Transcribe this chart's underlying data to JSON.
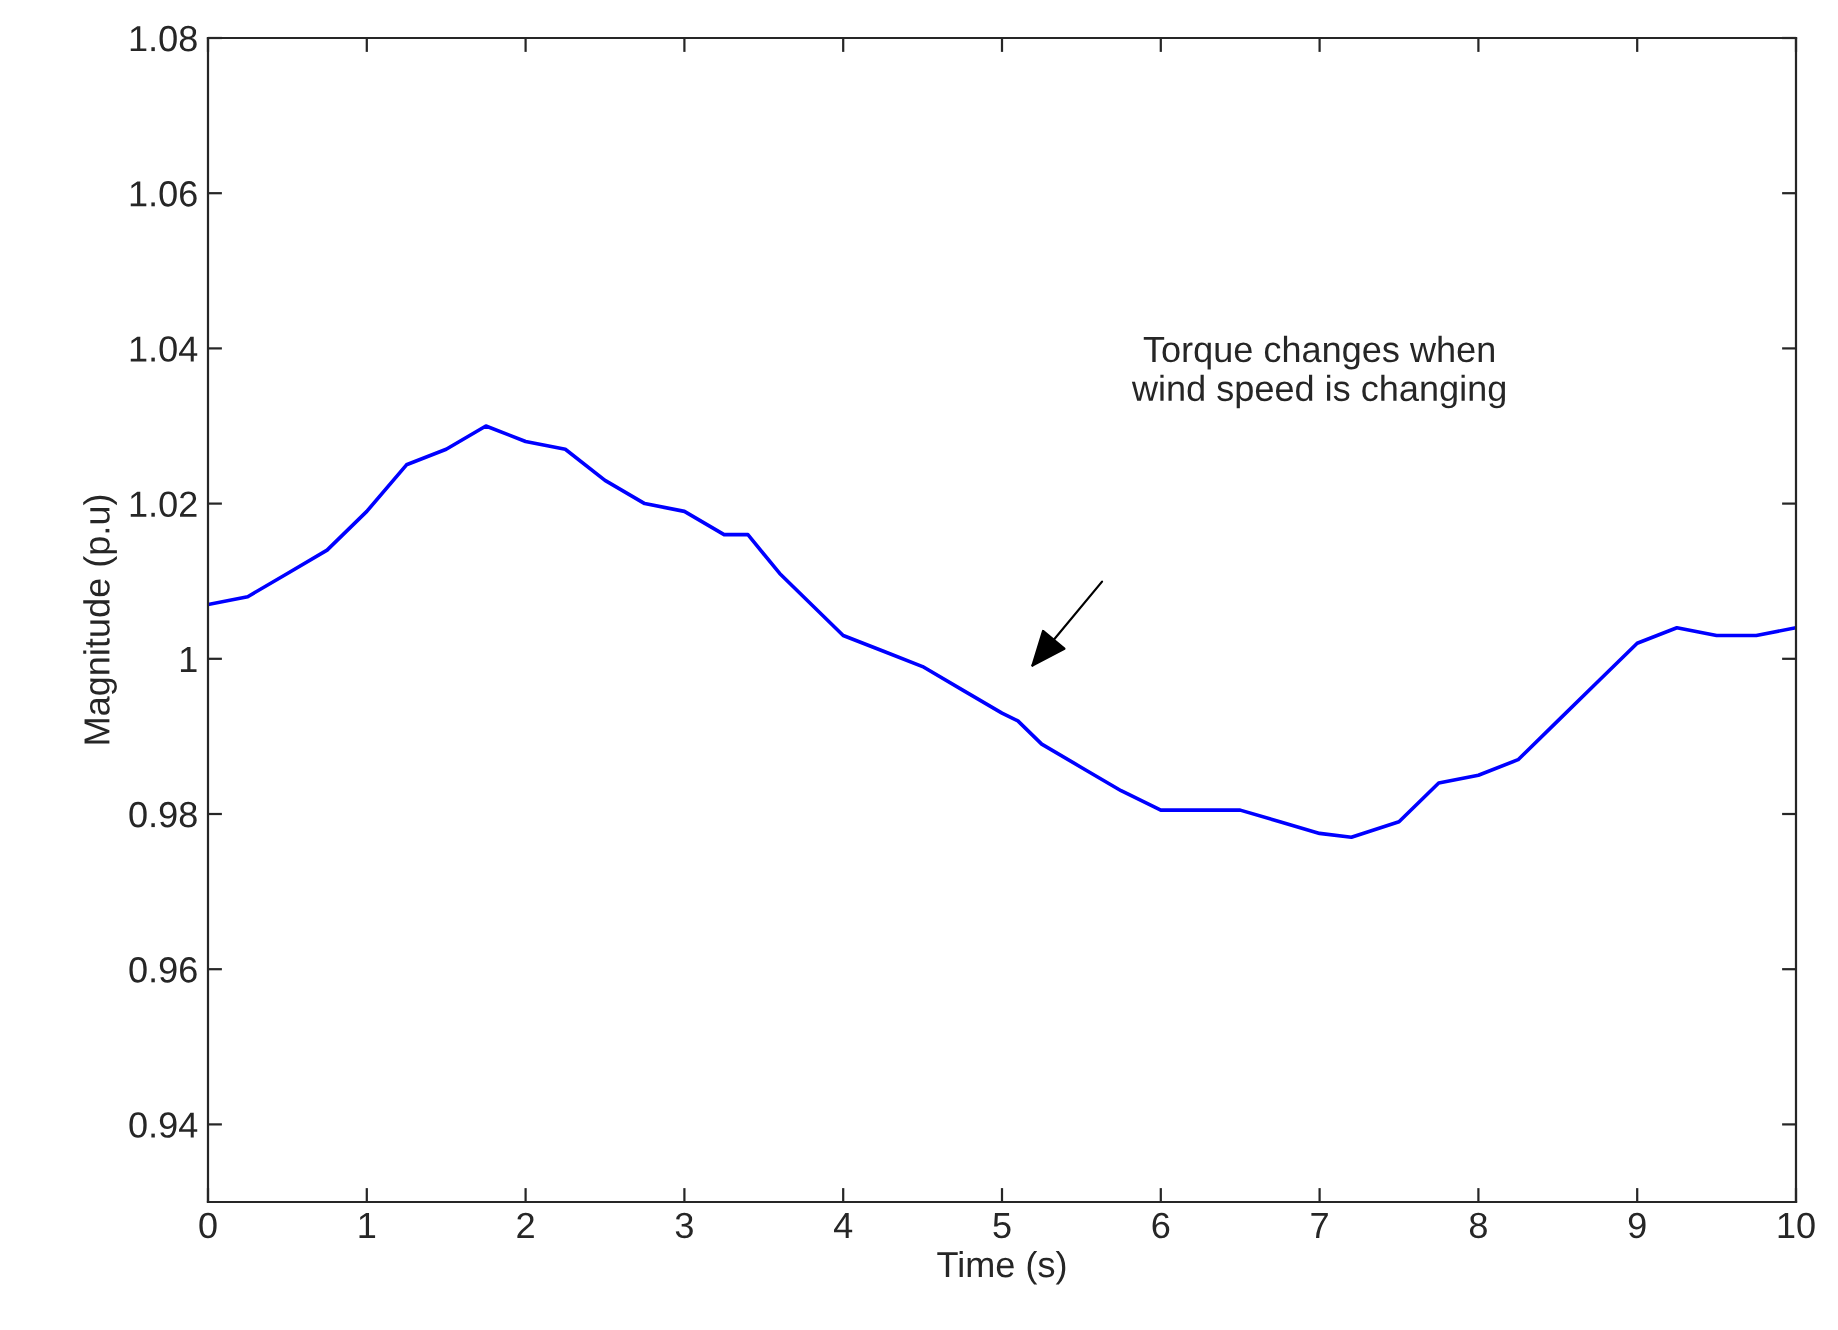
{
  "chart_data": {
    "type": "line",
    "xlabel": "Time (s)",
    "ylabel": "Magnitude (p.u)",
    "annotations": [
      "Torque changes when\nwind speed is changing"
    ],
    "xlim": [
      0,
      10
    ],
    "ylim": [
      0.93,
      1.08
    ],
    "xticks": [
      0,
      1,
      2,
      3,
      4,
      5,
      6,
      7,
      8,
      9,
      10
    ],
    "yticks": [
      0.94,
      0.96,
      0.98,
      1,
      1.02,
      1.04,
      1.06,
      1.08
    ],
    "grid": false,
    "marker": "none",
    "line_style": "solid",
    "series": [
      {
        "color": "#0000ff",
        "x": [
          0,
          0.25,
          0.5,
          0.75,
          1.0,
          1.25,
          1.5,
          1.75,
          2.0,
          2.25,
          2.5,
          2.75,
          3.0,
          3.25,
          3.4,
          3.6,
          3.8,
          4.0,
          4.25,
          4.5,
          4.75,
          5.0,
          5.1,
          5.25,
          5.5,
          5.75,
          6.0,
          6.25,
          6.5,
          6.75,
          7.0,
          7.2,
          7.5,
          7.75,
          8.0,
          8.25,
          8.5,
          8.75,
          9.0,
          9.25,
          9.5,
          9.75,
          10.0
        ],
        "values": [
          1.007,
          1.008,
          1.011,
          1.014,
          1.019,
          1.025,
          1.027,
          1.03,
          1.028,
          1.027,
          1.023,
          1.02,
          1.019,
          1.016,
          1.016,
          1.011,
          1.007,
          1.003,
          1.001,
          0.999,
          0.996,
          0.993,
          0.992,
          0.989,
          0.986,
          0.983,
          0.9805,
          0.9805,
          0.9805,
          0.979,
          0.9775,
          0.977,
          0.979,
          0.984,
          0.985,
          0.987,
          0.992,
          0.997,
          1.002,
          1.004,
          1.003,
          1.003,
          1.004
        ]
      }
    ]
  }
}
